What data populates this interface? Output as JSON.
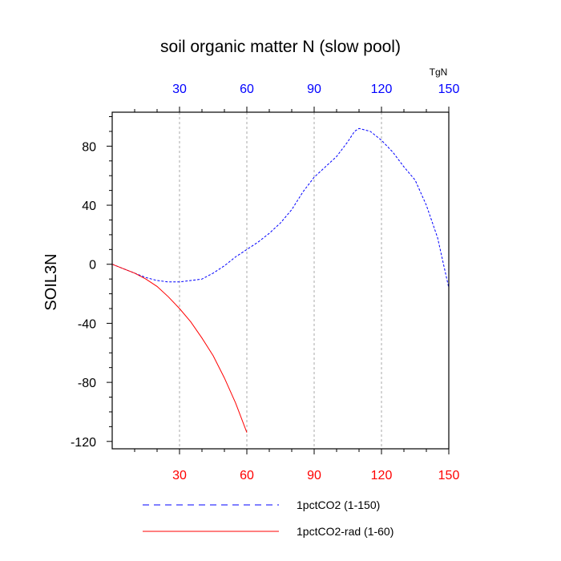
{
  "chart_data": {
    "type": "line",
    "title": "soil organic matter N (slow pool)",
    "ylabel": "SOIL3N",
    "units": "TgN",
    "xlim": [
      0,
      150
    ],
    "ylim": [
      -125,
      103
    ],
    "x_ticks": [
      "30",
      "60",
      "90",
      "120",
      "150"
    ],
    "x_tick_values": [
      30,
      60,
      90,
      120,
      150
    ],
    "y_ticks": [
      "80",
      "40",
      "0",
      "-40",
      "-80",
      "-120"
    ],
    "y_tick_values": [
      80,
      40,
      0,
      -40,
      -80,
      -120
    ],
    "grid": "vertical dotted at x ticks",
    "series": [
      {
        "name": "1pctCO2 (1-150)",
        "color": "#0000ff",
        "style": "dashed",
        "x": [
          0,
          5,
          10,
          15,
          20,
          25,
          30,
          35,
          40,
          45,
          50,
          55,
          60,
          65,
          70,
          75,
          80,
          85,
          90,
          95,
          100,
          105,
          108,
          110,
          115,
          120,
          125,
          130,
          135,
          140,
          145,
          150
        ],
        "y": [
          0,
          -3,
          -6,
          -9,
          -11,
          -12,
          -12,
          -11,
          -10,
          -6,
          -1,
          5,
          10,
          15,
          21,
          28,
          37,
          49,
          59,
          66,
          73,
          83,
          90,
          92,
          90,
          84,
          76,
          66,
          57,
          40,
          18,
          -16
        ]
      },
      {
        "name": "1pctCO2-rad (1-60)",
        "color": "#ff0000",
        "style": "solid",
        "x": [
          0,
          5,
          10,
          15,
          20,
          25,
          30,
          35,
          40,
          45,
          50,
          55,
          60
        ],
        "y": [
          0,
          -3,
          -6,
          -10,
          -15,
          -22,
          -30,
          -39,
          -50,
          -62,
          -77,
          -94,
          -114
        ]
      }
    ]
  }
}
